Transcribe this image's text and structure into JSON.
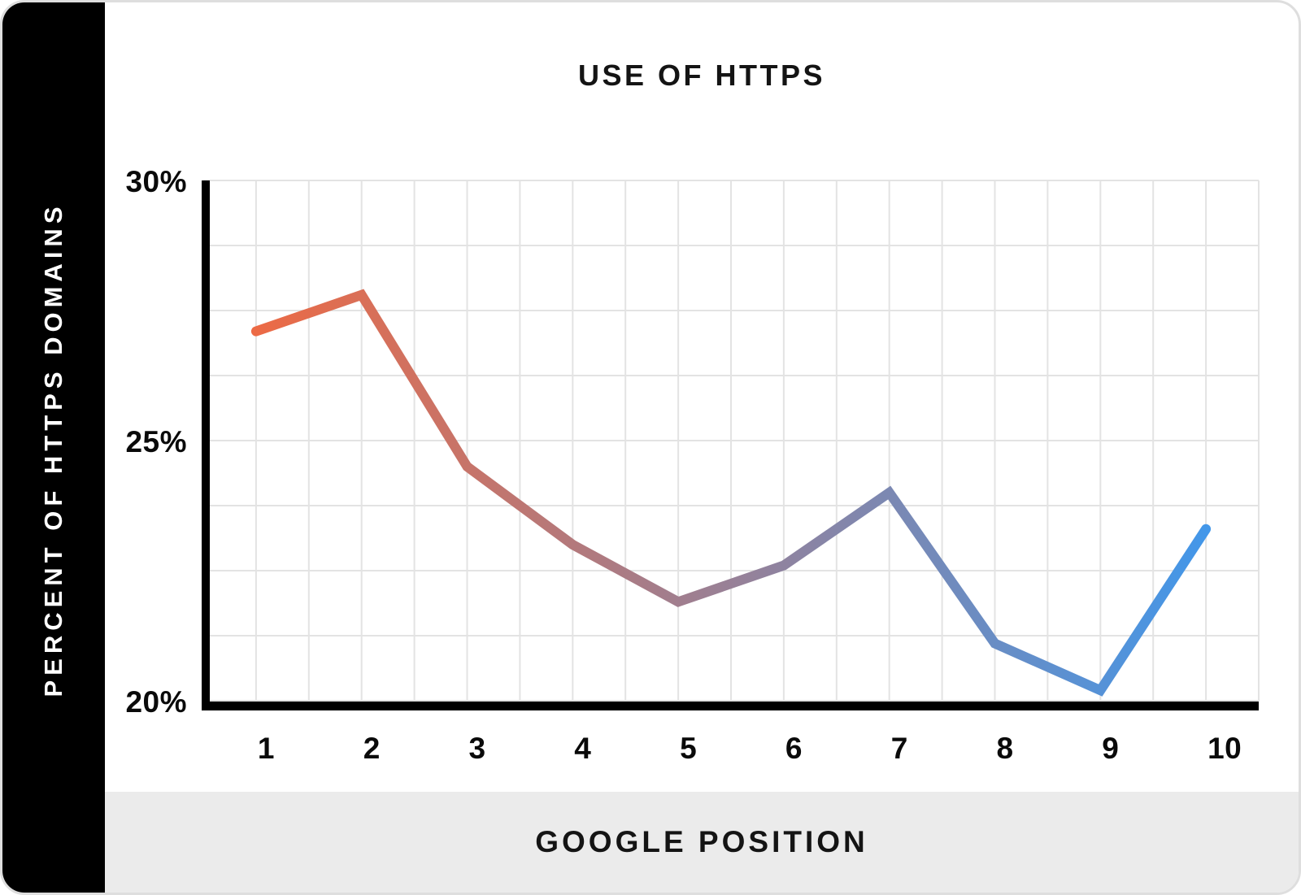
{
  "chart_data": {
    "type": "line",
    "title": "USE OF HTTPS",
    "xlabel": "GOOGLE POSITION",
    "ylabel": "PERCENT OF HTTPS DOMAINS",
    "categories": [
      "1",
      "2",
      "3",
      "4",
      "5",
      "6",
      "7",
      "8",
      "9",
      "10"
    ],
    "values": [
      27.1,
      27.8,
      24.5,
      23.0,
      21.9,
      22.6,
      24.0,
      21.1,
      20.2,
      23.3
    ],
    "ylim": [
      20,
      30
    ],
    "yticks": [
      {
        "value": 30,
        "label": "30%"
      },
      {
        "value": 25,
        "label": "25%"
      },
      {
        "value": 20,
        "label": "20%"
      }
    ],
    "grid": {
      "visible": true,
      "y_step_percent": 1.25,
      "x_subdivisions_per_category": 2
    },
    "line": {
      "gradient_start": "#EC6A45",
      "gradient_end": "#4397E9",
      "stroke_width": 12
    },
    "legend": "none"
  },
  "colors": {
    "sidebar_bg": "#000000",
    "axis": "#000000",
    "gridline": "#e3e3e3",
    "band_bg": "#ebebeb",
    "card_border": "#dedede",
    "text": "#0a0a0a"
  }
}
